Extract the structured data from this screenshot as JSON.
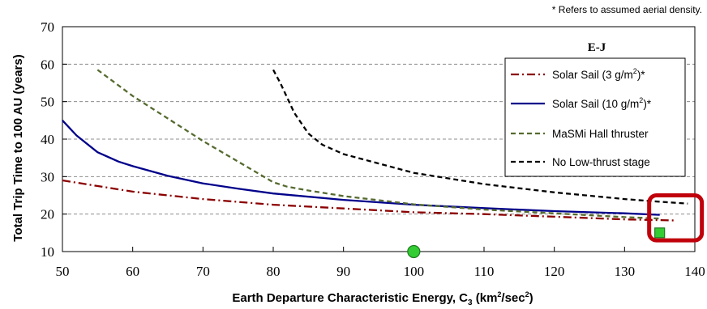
{
  "chart_data": {
    "type": "line",
    "note": "* Refers to assumed aerial density.",
    "xlabel": {
      "main": "Earth Departure Characteristic Energy, C",
      "sub": "3",
      "units_pre": " (km",
      "units_sup": "2",
      "units_post": "/sec",
      "units_sup2": "2",
      "units_end": ")"
    },
    "ylabel": "Total Trip Time to 100 AU (years)",
    "xlim": [
      50,
      140
    ],
    "ylim": [
      10,
      70
    ],
    "xticks": [
      50,
      60,
      70,
      80,
      90,
      100,
      110,
      120,
      130,
      140
    ],
    "yticks": [
      10,
      20,
      30,
      40,
      50,
      60,
      70
    ],
    "grid": "horizontal-dashed",
    "legend": {
      "title": "E-J",
      "position": "top-right",
      "entries": [
        {
          "pre": "Solar Sail (3 g/m",
          "sup": "2",
          "post": ")*"
        },
        {
          "pre": "Solar Sail (10 g/m",
          "sup": "2",
          "post": ")*"
        },
        {
          "pre": "MaSMi Hall thruster",
          "sup": "",
          "post": ""
        },
        {
          "pre": "No Low-thrust stage",
          "sup": "",
          "post": ""
        }
      ]
    },
    "series": [
      {
        "name": "Solar Sail (3 g/m2)*",
        "color": "#8b0000",
        "style": "dashdot",
        "x": [
          50,
          60,
          70,
          80,
          90,
          100,
          110,
          120,
          130,
          137
        ],
        "y": [
          29,
          26,
          24,
          22.5,
          21.5,
          20.5,
          20,
          19.3,
          18.6,
          18.3
        ]
      },
      {
        "name": "Solar Sail (10 g/m2)*",
        "color": "#00008b",
        "style": "solid",
        "x": [
          50,
          52,
          55,
          58,
          60,
          65,
          70,
          75,
          80,
          90,
          100,
          110,
          120,
          130,
          135
        ],
        "y": [
          45,
          41,
          36.5,
          34,
          32.8,
          30.2,
          28.2,
          26.8,
          25.5,
          23.8,
          22.5,
          21.6,
          20.8,
          20.2,
          19.8
        ]
      },
      {
        "name": "MaSMi Hall thruster",
        "color": "#556b2f",
        "style": "dashed",
        "x": [
          55,
          60,
          65,
          70,
          75,
          80,
          82,
          85,
          90,
          100,
          110,
          120,
          130,
          135
        ],
        "y": [
          58.5,
          51.5,
          45.5,
          39.5,
          34,
          28.5,
          27.3,
          26.3,
          24.8,
          22.6,
          21.2,
          20.2,
          19.2,
          18.8
        ]
      },
      {
        "name": "No Low-thrust stage",
        "color": "#000000",
        "style": "dashed",
        "x": [
          80,
          81,
          83,
          85,
          87,
          90,
          95,
          100,
          105,
          110,
          120,
          130,
          135,
          139
        ],
        "y": [
          58.5,
          55,
          47,
          41.5,
          38.5,
          36,
          33.5,
          31,
          29.5,
          28,
          25.8,
          24,
          23.3,
          22.8
        ]
      }
    ],
    "markers": [
      {
        "name": "green-circle",
        "shape": "circle",
        "x": 100,
        "y": 10,
        "color": "#33cc33"
      },
      {
        "name": "green-square",
        "shape": "square",
        "x": 135,
        "y": 15,
        "color": "#33cc33"
      }
    ],
    "highlight": {
      "color": "#c0000a",
      "x_range": [
        133.5,
        141
      ],
      "y_range": [
        13,
        25
      ]
    }
  }
}
